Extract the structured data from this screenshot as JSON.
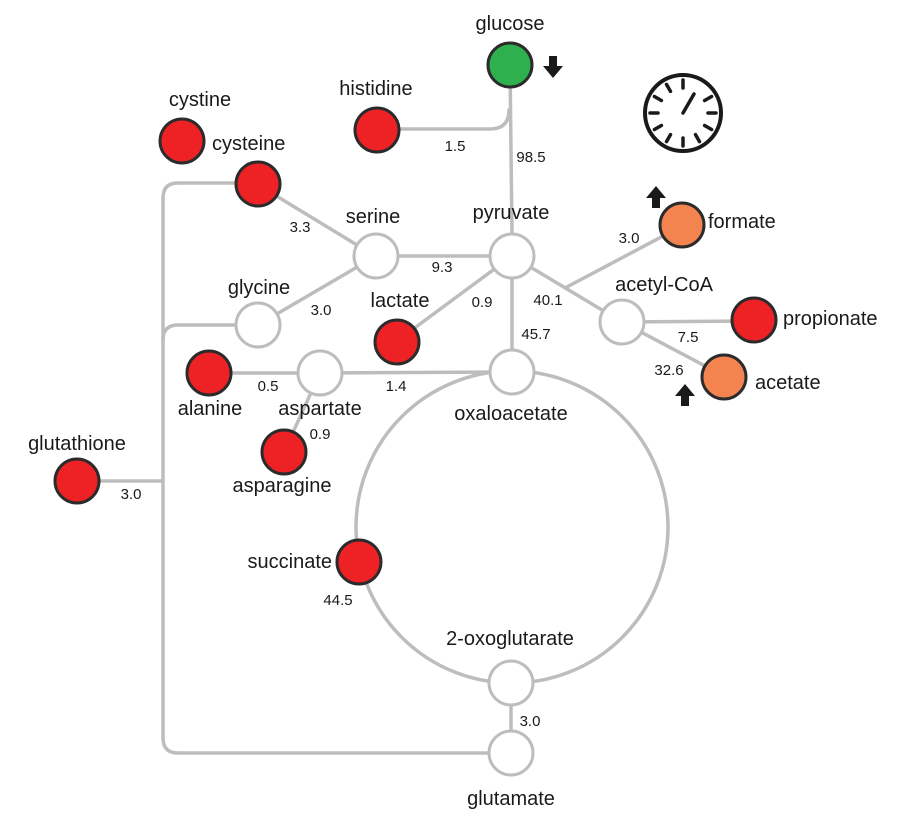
{
  "colors": {
    "decreased": "#2eb04f",
    "increased_strong": "#ee2225",
    "increased_moderate": "#f3844f",
    "none": "#ffffff",
    "edge": "#bdbdbd"
  },
  "metabolites": {
    "glucose": {
      "label": "glucose",
      "status": "decreased",
      "arrow": "down"
    },
    "histidine": {
      "label": "histidine",
      "status": "increased_strong"
    },
    "cystine": {
      "label": "cystine",
      "status": "increased_strong"
    },
    "cysteine": {
      "label": "cysteine",
      "status": "increased_strong"
    },
    "serine": {
      "label": "serine",
      "status": "none"
    },
    "pyruvate": {
      "label": "pyruvate",
      "status": "none"
    },
    "formate": {
      "label": "formate",
      "status": "increased_moderate",
      "arrow": "up"
    },
    "glycine": {
      "label": "glycine",
      "status": "none"
    },
    "lactate": {
      "label": "lactate",
      "status": "increased_strong"
    },
    "acetyl_coa": {
      "label": "acetyl-CoA",
      "status": "none"
    },
    "propionate": {
      "label": "propionate",
      "status": "increased_strong"
    },
    "acetate": {
      "label": "acetate",
      "status": "increased_moderate",
      "arrow": "up"
    },
    "alanine": {
      "label": "alanine",
      "status": "increased_strong"
    },
    "aspartate": {
      "label": "aspartate",
      "status": "none"
    },
    "oxaloacetate": {
      "label": "oxaloacetate",
      "status": "none"
    },
    "asparagine": {
      "label": "asparagine",
      "status": "increased_strong"
    },
    "glutathione": {
      "label": "glutathione",
      "status": "increased_strong"
    },
    "succinate": {
      "label": "succinate",
      "status": "increased_strong"
    },
    "oxoglutarate": {
      "label": "2-oxoglutarate",
      "status": "none"
    },
    "glutamate": {
      "label": "glutamate",
      "status": "none"
    }
  },
  "fluxes": {
    "histidine_pyruvate": "1.5",
    "glucose_pyruvate": "98.5",
    "cysteine_serine": "3.3",
    "serine_pyruvate": "9.3",
    "glycine_serine": "3.0",
    "pyruvate_formate": "3.0",
    "lactate_pyruvate": "0.9",
    "pyruvate_acetyl_coa": "40.1",
    "pyruvate_oxaloacetate": "45.7",
    "acetyl_coa_propionate": "7.5",
    "acetyl_coa_acetate": "32.6",
    "alanine_aspartate": "0.5",
    "aspartate_oxaloacetate": "1.4",
    "aspartate_asparagine": "0.9",
    "glutathione_glutamate": "3.0",
    "succinate": "44.5",
    "oxoglutarate_glutamate": "3.0"
  },
  "icons": {
    "timer": "stopwatch-icon"
  }
}
